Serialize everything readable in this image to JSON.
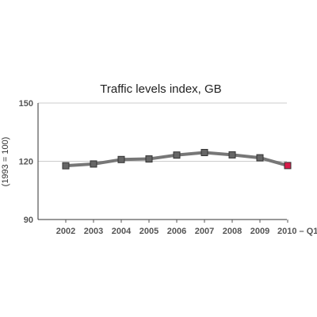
{
  "chart_data": {
    "type": "line",
    "title": "Traffic levels index, GB",
    "ylabel": "(1993 = 100)",
    "xlabel": "",
    "categories": [
      "2002",
      "2003",
      "2004",
      "2005",
      "2006",
      "2007",
      "2008",
      "2009",
      "2010 – Q1"
    ],
    "yticks": [
      "150",
      "120",
      "90"
    ],
    "ylim": [
      90,
      150
    ],
    "grid": "horizontal",
    "series": [
      {
        "values": [
          117.7,
          118.6,
          120.9,
          121.2,
          123.2,
          124.5,
          123.3,
          121.8,
          117.8
        ]
      }
    ],
    "highlight_index": 8,
    "colors": {
      "line": "#777777",
      "marker": "#666666",
      "highlight": "#d81b4a",
      "grid": "#cccccc",
      "tick_text": "#555555"
    }
  }
}
